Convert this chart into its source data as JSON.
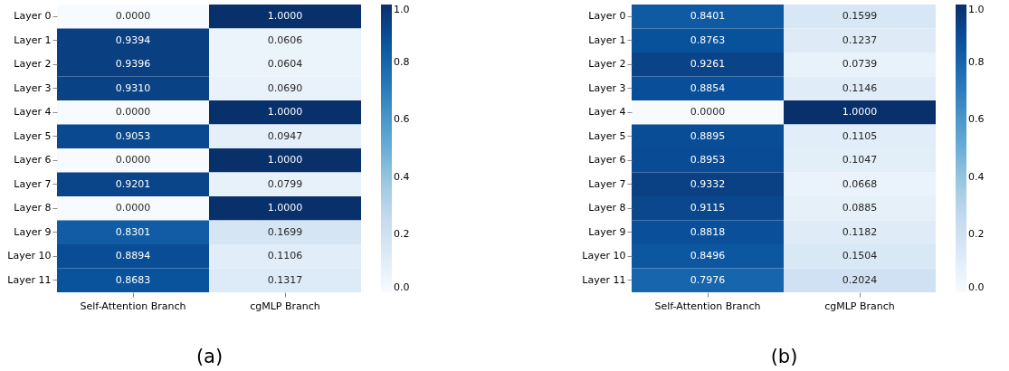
{
  "chart_data": [
    {
      "type": "heatmap",
      "xlabel": "(a)",
      "categories": [
        "Self-Attention Branch",
        "cgMLP Branch"
      ],
      "y_categories": [
        "Layer 0",
        "Layer 1",
        "Layer 2",
        "Layer 3",
        "Layer 4",
        "Layer 5",
        "Layer 6",
        "Layer 7",
        "Layer 8",
        "Layer 9",
        "Layer 10",
        "Layer 11"
      ],
      "cells": [
        [
          0.0,
          1.0
        ],
        [
          0.9394,
          0.0606
        ],
        [
          0.9396,
          0.0604
        ],
        [
          0.931,
          0.069
        ],
        [
          0.0,
          1.0
        ],
        [
          0.9053,
          0.0947
        ],
        [
          0.0,
          1.0
        ],
        [
          0.9201,
          0.0799
        ],
        [
          0.0,
          1.0
        ],
        [
          0.8301,
          0.1699
        ],
        [
          0.8894,
          0.1106
        ],
        [
          0.8683,
          0.1317
        ]
      ],
      "cell_labels": [
        [
          "0.0000",
          "1.0000"
        ],
        [
          "0.9394",
          "0.0606"
        ],
        [
          "0.9396",
          "0.0604"
        ],
        [
          "0.9310",
          "0.0690"
        ],
        [
          "0.0000",
          "1.0000"
        ],
        [
          "0.9053",
          "0.0947"
        ],
        [
          "0.0000",
          "1.0000"
        ],
        [
          "0.9201",
          "0.0799"
        ],
        [
          "0.0000",
          "1.0000"
        ],
        [
          "0.8301",
          "0.1699"
        ],
        [
          "0.8894",
          "0.1106"
        ],
        [
          "0.8683",
          "0.1317"
        ]
      ],
      "clim": [
        0,
        1
      ],
      "cticks": [
        {
          "value": 0,
          "label": "0.0"
        },
        {
          "value": 0.2,
          "label": "0.2"
        },
        {
          "value": 0.4,
          "label": "0.4"
        },
        {
          "value": 0.6,
          "label": "0.6"
        },
        {
          "value": 0.8,
          "label": "0.8"
        },
        {
          "value": 1,
          "label": "1.0"
        }
      ]
    },
    {
      "type": "heatmap",
      "xlabel": "(b)",
      "categories": [
        "Self-Attention Branch",
        "cgMLP Branch"
      ],
      "y_categories": [
        "Layer 0",
        "Layer 1",
        "Layer 2",
        "Layer 3",
        "Layer 4",
        "Layer 5",
        "Layer 6",
        "Layer 7",
        "Layer 8",
        "Layer 9",
        "Layer 10",
        "Layer 11"
      ],
      "cells": [
        [
          0.8401,
          0.1599
        ],
        [
          0.8763,
          0.1237
        ],
        [
          0.9261,
          0.0739
        ],
        [
          0.8854,
          0.1146
        ],
        [
          0.0,
          1.0
        ],
        [
          0.8895,
          0.1105
        ],
        [
          0.8953,
          0.1047
        ],
        [
          0.9332,
          0.0668
        ],
        [
          0.9115,
          0.0885
        ],
        [
          0.8818,
          0.1182
        ],
        [
          0.8496,
          0.1504
        ],
        [
          0.7976,
          0.2024
        ]
      ],
      "cell_labels": [
        [
          "0.8401",
          "0.1599"
        ],
        [
          "0.8763",
          "0.1237"
        ],
        [
          "0.9261",
          "0.0739"
        ],
        [
          "0.8854",
          "0.1146"
        ],
        [
          "0.0000",
          "1.0000"
        ],
        [
          "0.8895",
          "0.1105"
        ],
        [
          "0.8953",
          "0.1047"
        ],
        [
          "0.9332",
          "0.0668"
        ],
        [
          "0.9115",
          "0.0885"
        ],
        [
          "0.8818",
          "0.1182"
        ],
        [
          "0.8496",
          "0.1504"
        ],
        [
          "0.7976",
          "0.2024"
        ]
      ],
      "clim": [
        0,
        1
      ],
      "cticks": [
        {
          "value": 0,
          "label": "0.0"
        },
        {
          "value": 0.2,
          "label": "0.2"
        },
        {
          "value": 0.4,
          "label": "0.4"
        },
        {
          "value": 0.6,
          "label": "0.6"
        },
        {
          "value": 0.8,
          "label": "0.8"
        },
        {
          "value": 1,
          "label": "1.0"
        }
      ]
    }
  ]
}
